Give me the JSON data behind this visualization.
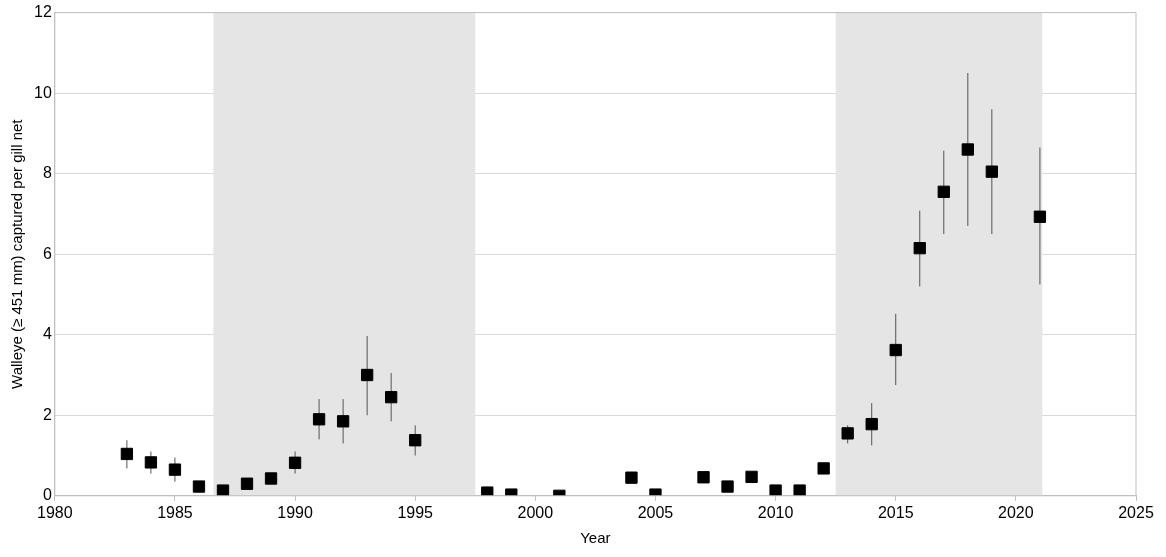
{
  "chart_data": {
    "type": "scatter",
    "xlabel": "Year",
    "ylabel": "Walleye (≥ 451 mm) captured per gill net",
    "x": [
      1983,
      1984,
      1985,
      1986,
      1987,
      1988,
      1989,
      1990,
      1991,
      1992,
      1993,
      1994,
      1995,
      1998,
      1999,
      2001,
      2004,
      2005,
      2007,
      2008,
      2009,
      2010,
      2011,
      2012,
      2013,
      2014,
      2015,
      2016,
      2017,
      2018,
      2019,
      2021
    ],
    "series": [
      {
        "color": "#000000",
        "values": [
          1.04,
          0.83,
          0.65,
          0.23,
          0.13,
          0.3,
          0.43,
          0.82,
          1.9,
          1.85,
          3.0,
          2.45,
          1.38,
          0.08,
          0.03,
          0.0,
          0.45,
          0.03,
          0.46,
          0.23,
          0.47,
          0.13,
          0.13,
          0.68,
          1.55,
          1.78,
          3.62,
          6.15,
          7.55,
          8.6,
          8.05,
          6.93
        ],
        "errors": [
          [
            0.68,
            1.38
          ],
          [
            0.55,
            1.1
          ],
          [
            0.35,
            0.95
          ],
          null,
          null,
          null,
          null,
          [
            0.55,
            1.1
          ],
          [
            1.4,
            2.4
          ],
          [
            1.3,
            2.4
          ],
          [
            2.0,
            3.97
          ],
          [
            1.85,
            3.05
          ],
          [
            1.0,
            1.75
          ],
          null,
          null,
          null,
          null,
          null,
          null,
          null,
          null,
          null,
          null,
          null,
          [
            1.3,
            1.75
          ],
          [
            1.25,
            2.3
          ],
          [
            2.75,
            4.52
          ],
          [
            5.2,
            7.08
          ],
          [
            6.5,
            8.57
          ],
          [
            6.7,
            10.5
          ],
          [
            6.5,
            9.6
          ],
          [
            5.25,
            8.65
          ]
        ]
      }
    ],
    "xlim": [
      1980,
      2025
    ],
    "xticks": [
      1980,
      1985,
      1990,
      1995,
      2000,
      2005,
      2010,
      2015,
      2020,
      2025
    ],
    "ylim": [
      0,
      12
    ],
    "yticks": [
      0,
      2,
      4,
      6,
      8,
      10,
      12
    ],
    "bands": [
      {
        "axis": "x",
        "from": 1986.6,
        "to": 1997.5,
        "color": "#e5e5e5"
      },
      {
        "axis": "x",
        "from": 2012.5,
        "to": 2021.1,
        "color": "#e5e5e5"
      }
    ],
    "grid": "y",
    "legend": false,
    "marker": "square"
  }
}
